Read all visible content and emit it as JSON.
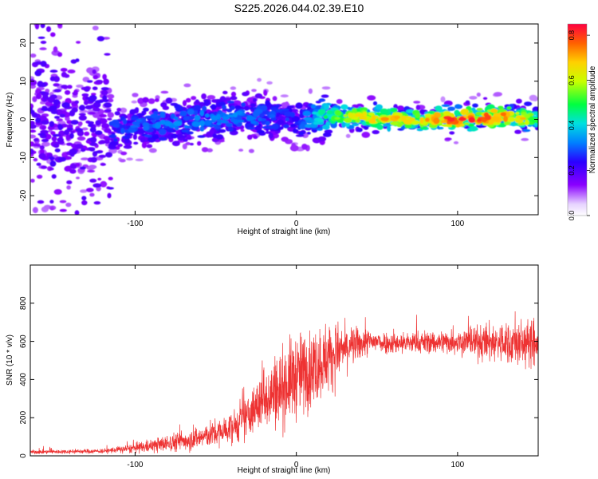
{
  "title": "S225.2026.044.02.39.E10",
  "colors": {
    "snr_line": "#ee3333",
    "axes": "#000000",
    "background": "#ffffff"
  },
  "chart_data": [
    {
      "type": "heatmap",
      "name": "spectrogram",
      "xlabel": "Height of straight line (km)",
      "ylabel": "Frequency (Hz)",
      "xlim": [
        -165,
        150
      ],
      "ylim": [
        -25,
        25
      ],
      "xticks": [
        -100,
        0,
        100
      ],
      "yticks": [
        -20,
        -10,
        0,
        10,
        20
      ],
      "xticklabels": [
        "-100",
        "0",
        "100"
      ],
      "yticklabels": [
        "-20",
        "-10",
        "0",
        "10",
        "20"
      ],
      "colorbar": {
        "label": "Normalized spectral amplitude",
        "range": [
          0,
          0.85
        ],
        "ticks": [
          0.0,
          0.2,
          0.4,
          0.6,
          0.8
        ],
        "ticklabels": [
          "0.0",
          "0.2",
          "0.4",
          "0.6",
          "0.8"
        ]
      },
      "ridge": {
        "description": "signal band centred near 0 Hz, diffuse below -110 km, strong above +25 km",
        "x": [
          -165,
          -120,
          -80,
          -40,
          0,
          25,
          50,
          75,
          100,
          125,
          150
        ],
        "freq": [
          0,
          -3,
          -1,
          1,
          0,
          1,
          0.5,
          0,
          0,
          1,
          0
        ],
        "amplitude": [
          0.05,
          0.2,
          0.25,
          0.25,
          0.2,
          0.45,
          0.6,
          0.55,
          0.7,
          0.65,
          0.5
        ]
      }
    },
    {
      "type": "line",
      "name": "snr",
      "xlabel": "Height of straight line (km)",
      "ylabel": "SNR (10 * v/v)",
      "xlim": [
        -165,
        150
      ],
      "ylim": [
        0,
        1000
      ],
      "xticks": [
        -100,
        0,
        100
      ],
      "yticks": [
        0,
        200,
        400,
        600,
        800
      ],
      "xticklabels": [
        "-100",
        "0",
        "100"
      ],
      "yticklabels": [
        "0",
        "200",
        "400",
        "600",
        "800"
      ],
      "envelope": {
        "x": [
          -165,
          -120,
          -100,
          -80,
          -60,
          -45,
          -35,
          -25,
          -20,
          -15,
          -10,
          0,
          10,
          20,
          30,
          40,
          50,
          60,
          80,
          100,
          120,
          140,
          150
        ],
        "mean": [
          20,
          25,
          40,
          65,
          95,
          130,
          170,
          250,
          310,
          330,
          350,
          420,
          460,
          520,
          560,
          590,
          600,
          590,
          595,
          600,
          595,
          590,
          580
        ],
        "spread": [
          10,
          12,
          25,
          45,
          60,
          75,
          90,
          130,
          160,
          180,
          200,
          220,
          200,
          180,
          120,
          80,
          60,
          55,
          60,
          65,
          100,
          120,
          110
        ]
      }
    }
  ]
}
